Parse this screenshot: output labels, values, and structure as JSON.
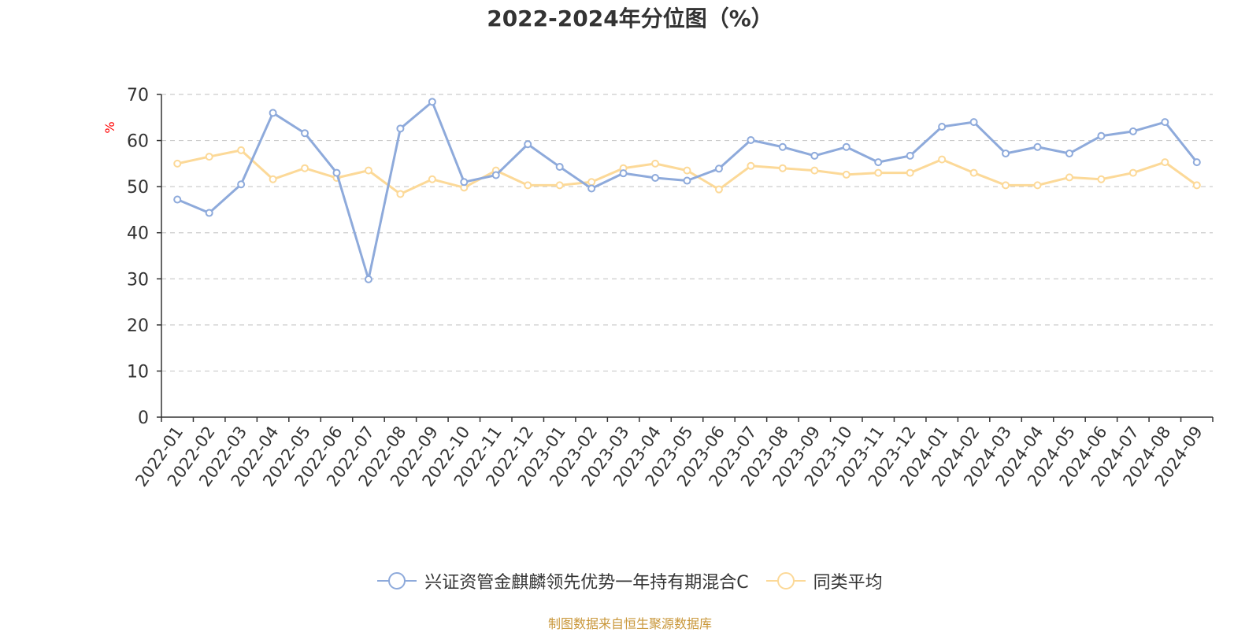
{
  "title": "2022-2024年分位图（%）",
  "source": "制图数据来自恒生聚源数据库",
  "chart_data": {
    "type": "line",
    "title": "2022-2024年分位图（%）",
    "ylabel": "%",
    "ylim": [
      0,
      70
    ],
    "yticks": [
      0,
      10,
      20,
      30,
      40,
      50,
      60,
      70
    ],
    "grid": true,
    "legend_position": "bottom",
    "categories": [
      "2022-01",
      "2022-02",
      "2022-03",
      "2022-04",
      "2022-05",
      "2022-06",
      "2022-07",
      "2022-08",
      "2022-09",
      "2022-10",
      "2022-11",
      "2022-12",
      "2023-01",
      "2023-02",
      "2023-03",
      "2023-04",
      "2023-05",
      "2023-06",
      "2023-07",
      "2023-08",
      "2023-09",
      "2023-10",
      "2023-11",
      "2023-12",
      "2024-01",
      "2024-02",
      "2024-03",
      "2024-04",
      "2024-05",
      "2024-06",
      "2024-07",
      "2024-08",
      "2024-09"
    ],
    "series": [
      {
        "name": "兴证资管金麒麟领先优势一年持有期混合C",
        "color": "#8eaadb",
        "values": [
          47.2,
          44.3,
          50.5,
          66.0,
          61.6,
          53.0,
          29.9,
          62.6,
          68.4,
          51.0,
          52.5,
          59.2,
          54.3,
          49.6,
          52.9,
          51.9,
          51.3,
          53.9,
          60.1,
          58.6,
          56.7,
          58.6,
          55.3,
          56.7,
          63.0,
          64.0,
          57.2,
          58.6,
          57.2,
          61.0,
          62.0,
          64.0,
          55.3
        ]
      },
      {
        "name": "同类平均",
        "color": "#fcd998",
        "values": [
          55.0,
          56.5,
          57.9,
          51.6,
          54.0,
          51.9,
          53.5,
          48.4,
          51.6,
          49.8,
          53.5,
          50.3,
          50.3,
          51.0,
          54.0,
          55.0,
          53.5,
          49.4,
          54.5,
          54.0,
          53.5,
          52.6,
          53.0,
          53.0,
          55.9,
          53.0,
          50.3,
          50.3,
          52.0,
          51.6,
          53.0,
          55.3,
          50.3
        ]
      }
    ]
  }
}
